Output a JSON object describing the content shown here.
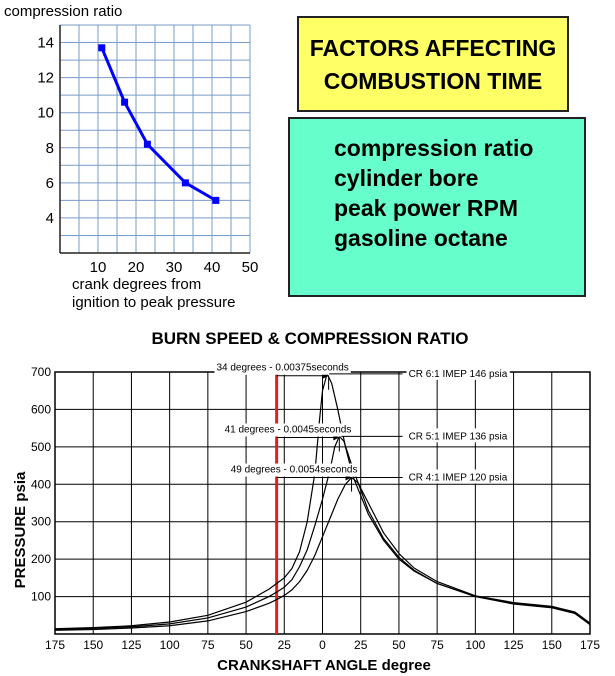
{
  "info_panel": {
    "heading_line1": "FACTORS AFFECTING",
    "heading_line2": "COMBUSTION TIME",
    "factors": [
      "compression ratio",
      "cylinder bore",
      "peak power RPM",
      "gasoline octane"
    ]
  },
  "chart_data": [
    {
      "type": "line",
      "title": "",
      "xlabel": "crank degrees from ignition to peak pressure",
      "ylabel": "compression ratio",
      "xlim": [
        0,
        50
      ],
      "ylim": [
        2,
        15
      ],
      "x_ticks": [
        "10",
        "20",
        "30",
        "40",
        "50"
      ],
      "y_ticks": [
        "4",
        "6",
        "8",
        "10",
        "12",
        "14"
      ],
      "grid": true,
      "series": [
        {
          "color": "#0000ff",
          "points": [
            [
              11,
              13.7
            ],
            [
              17,
              10.6
            ],
            [
              23,
              8.2
            ],
            [
              33,
              6.0
            ],
            [
              41,
              5.0
            ]
          ]
        }
      ]
    },
    {
      "type": "line",
      "title": "BURN SPEED & COMPRESSION RATIO",
      "xlabel": "CRANKSHAFT ANGLE  degree",
      "ylabel": "PRESSURE  psia",
      "xlim": [
        175,
        -175
      ],
      "ylim": [
        0,
        700
      ],
      "x_ticks": [
        "175",
        "150",
        "125",
        "100",
        "75",
        "50",
        "25",
        "0",
        "25",
        "50",
        "75",
        "100",
        "125",
        "150",
        "175"
      ],
      "y_ticks": [
        "100",
        "200",
        "300",
        "400",
        "500",
        "600",
        "700"
      ],
      "grid": true,
      "ignition_line": {
        "x": 30,
        "color": "#e02020"
      },
      "annotations": [
        {
          "text": "34 degrees - 0.00375seconds",
          "from_x": 30,
          "to_x": -4,
          "y": 690
        },
        {
          "text": "41 degrees - 0.0045seconds",
          "from_x": 30,
          "to_x": -11,
          "y": 525
        },
        {
          "text": "49 degrees - 0.0054seconds",
          "from_x": 30,
          "to_x": -19,
          "y": 418
        }
      ],
      "series": [
        {
          "name": "CR 6:1 IMEP 146 psia",
          "color": "#000000",
          "points": [
            [
              175,
              14
            ],
            [
              150,
              17
            ],
            [
              125,
              22
            ],
            [
              100,
              32
            ],
            [
              75,
              50
            ],
            [
              50,
              85
            ],
            [
              35,
              120
            ],
            [
              30,
              135
            ],
            [
              25,
              150
            ],
            [
              20,
              175
            ],
            [
              15,
              220
            ],
            [
              10,
              300
            ],
            [
              5,
              430
            ],
            [
              2,
              570
            ],
            [
              0,
              650
            ],
            [
              -3,
              695
            ],
            [
              -6,
              670
            ],
            [
              -10,
              600
            ],
            [
              -15,
              500
            ],
            [
              -20,
              420
            ],
            [
              -30,
              320
            ],
            [
              -40,
              250
            ],
            [
              -50,
              200
            ],
            [
              -60,
              168
            ],
            [
              -75,
              135
            ],
            [
              -100,
              100
            ],
            [
              -125,
              80
            ],
            [
              -150,
              70
            ],
            [
              -165,
              55
            ],
            [
              -175,
              25
            ]
          ]
        },
        {
          "name": "CR 5:1 IMEP 136 psia",
          "color": "#000000",
          "points": [
            [
              175,
              12
            ],
            [
              150,
              15
            ],
            [
              125,
              19
            ],
            [
              100,
              27
            ],
            [
              75,
              43
            ],
            [
              50,
              72
            ],
            [
              35,
              100
            ],
            [
              30,
              112
            ],
            [
              25,
              125
            ],
            [
              20,
              145
            ],
            [
              15,
              180
            ],
            [
              10,
              225
            ],
            [
              5,
              290
            ],
            [
              0,
              360
            ],
            [
              -5,
              440
            ],
            [
              -8,
              500
            ],
            [
              -11,
              528
            ],
            [
              -14,
              515
            ],
            [
              -20,
              440
            ],
            [
              -30,
              330
            ],
            [
              -40,
              255
            ],
            [
              -50,
              205
            ],
            [
              -60,
              170
            ],
            [
              -75,
              135
            ],
            [
              -100,
              100
            ],
            [
              -125,
              82
            ],
            [
              -150,
              72
            ],
            [
              -165,
              57
            ],
            [
              -175,
              27
            ]
          ]
        },
        {
          "name": "CR 4:1 IMEP 120 psia",
          "color": "#000000",
          "points": [
            [
              175,
              10
            ],
            [
              150,
              12
            ],
            [
              125,
              16
            ],
            [
              100,
              22
            ],
            [
              75,
              35
            ],
            [
              50,
              60
            ],
            [
              35,
              82
            ],
            [
              30,
              92
            ],
            [
              25,
              103
            ],
            [
              20,
              118
            ],
            [
              15,
              140
            ],
            [
              10,
              170
            ],
            [
              5,
              210
            ],
            [
              0,
              260
            ],
            [
              -5,
              310
            ],
            [
              -10,
              360
            ],
            [
              -15,
              400
            ],
            [
              -19,
              418
            ],
            [
              -23,
              405
            ],
            [
              -30,
              350
            ],
            [
              -40,
              270
            ],
            [
              -50,
              215
            ],
            [
              -60,
              176
            ],
            [
              -75,
              140
            ],
            [
              -100,
              102
            ],
            [
              -125,
              84
            ],
            [
              -150,
              74
            ],
            [
              -165,
              59
            ],
            [
              -175,
              29
            ]
          ]
        }
      ]
    }
  ]
}
